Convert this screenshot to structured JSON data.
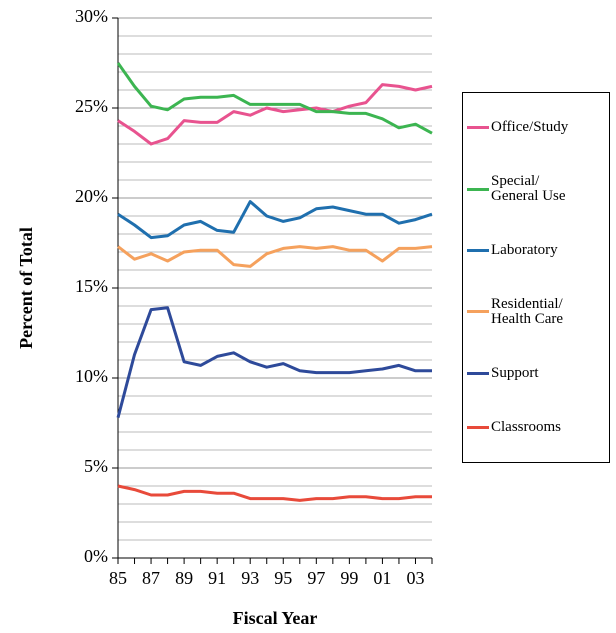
{
  "chart_data": {
    "type": "line",
    "y_label": "Percent of Total",
    "x_label": "Fiscal Year",
    "categories": [
      "85",
      null,
      "87",
      null,
      "89",
      null,
      "91",
      null,
      "93",
      null,
      "95",
      null,
      "97",
      null,
      "99",
      null,
      "01",
      null,
      "03",
      null
    ],
    "ylim": [
      0,
      30
    ],
    "yticks": [
      {
        "value": 0,
        "label": "0%"
      },
      {
        "value": 5,
        "label": "5%"
      },
      {
        "value": 10,
        "label": "10%"
      },
      {
        "value": 15,
        "label": "15%"
      },
      {
        "value": 20,
        "label": "20%"
      },
      {
        "value": 25,
        "label": "25%"
      },
      {
        "value": 30,
        "label": "30%"
      }
    ],
    "ygrid": [
      1,
      2,
      3,
      4,
      6,
      7,
      8,
      9,
      11,
      12,
      13,
      14,
      16,
      17,
      18,
      19,
      21,
      22,
      23,
      24,
      26,
      27,
      28,
      29
    ],
    "grid": true,
    "legend": "right",
    "series": [
      {
        "name": "Office/Study",
        "color": "#e8538f",
        "values": [
          24.3,
          23.7,
          23.0,
          23.3,
          24.3,
          24.2,
          24.2,
          24.8,
          24.6,
          25.0,
          24.8,
          24.9,
          25.0,
          24.8,
          25.1,
          25.3,
          26.3,
          26.2,
          26.0,
          26.2
        ]
      },
      {
        "name": "Special/\nGeneral Use",
        "color": "#3cb551",
        "values": [
          27.5,
          26.2,
          25.1,
          24.9,
          25.5,
          25.6,
          25.6,
          25.7,
          25.2,
          25.2,
          25.2,
          25.2,
          24.8,
          24.8,
          24.7,
          24.7,
          24.4,
          23.9,
          24.1,
          23.6
        ]
      },
      {
        "name": "Laboratory",
        "color": "#1f6fae",
        "values": [
          19.1,
          18.5,
          17.8,
          17.9,
          18.5,
          18.7,
          18.2,
          18.1,
          19.8,
          19.0,
          18.7,
          18.9,
          19.4,
          19.5,
          19.3,
          19.1,
          19.1,
          18.6,
          18.8,
          19.1
        ]
      },
      {
        "name": "Residential/\nHealth Care",
        "color": "#f5a15d",
        "values": [
          17.3,
          16.6,
          16.9,
          16.5,
          17.0,
          17.1,
          17.1,
          16.3,
          16.2,
          16.9,
          17.2,
          17.3,
          17.2,
          17.3,
          17.1,
          17.1,
          16.5,
          17.2,
          17.2,
          17.3
        ]
      },
      {
        "name": "Support",
        "color": "#2e4a9a",
        "values": [
          7.8,
          11.3,
          13.8,
          13.9,
          10.9,
          10.7,
          11.2,
          11.4,
          10.9,
          10.6,
          10.8,
          10.4,
          10.3,
          10.3,
          10.3,
          10.4,
          10.5,
          10.7,
          10.4,
          10.4
        ]
      },
      {
        "name": "Classrooms",
        "color": "#e84a3a",
        "values": [
          4.0,
          3.8,
          3.5,
          3.5,
          3.7,
          3.7,
          3.6,
          3.6,
          3.3,
          3.3,
          3.3,
          3.2,
          3.3,
          3.3,
          3.4,
          3.4,
          3.3,
          3.3,
          3.4,
          3.4
        ]
      }
    ]
  }
}
